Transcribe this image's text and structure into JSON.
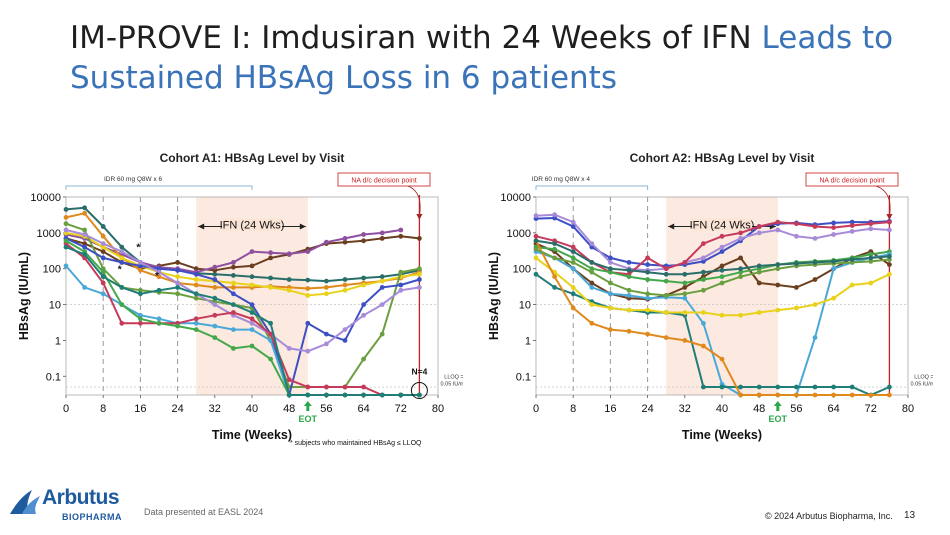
{
  "slide": {
    "title_part1": "IM-PROVE I: Imdusiran with 24 Weeks of IFN ",
    "title_part2": "Leads to",
    "title_part3": "Sustained ",
    "title_part4": "HBsAg Loss in 6 patients",
    "footer_note": "Data presented at EASL 2024",
    "copyright": "© 2024 Arbutus Biopharma, Inc.",
    "page_number": "13",
    "logo_name": "Arbutus",
    "logo_sub": "BIOPHARMA",
    "accent_color": "#3a73b8"
  },
  "chart_data": [
    {
      "type": "line",
      "title": "Cohort A1: HBsAg Level by Visit",
      "xlabel": "Time (Weeks)",
      "ylabel": "HBsAg (IU/mL)",
      "xlim": [
        0,
        80
      ],
      "ylim": [
        0.03,
        10000
      ],
      "yscale": "log",
      "xticks": [
        "0",
        "8",
        "16",
        "24",
        "32",
        "40",
        "48",
        "56",
        "64",
        "72",
        "80"
      ],
      "yticks": [
        "0.1",
        "1",
        "10",
        "100",
        "1000",
        "10000"
      ],
      "annotations": {
        "idr": "IDR 60 mg Q8W x 6",
        "ifn": "IFN (24 Wks)",
        "na": "NA d/c decision point",
        "eot": "EOT",
        "n": "N=4",
        "lloq1": "LLOQ =",
        "lloq2": "0.05 IU/mL",
        "footnote": "* subjects who maintained HBsAg ≤ LLOQ"
      },
      "series": [
        {
          "color": "#2a6e6a",
          "x": [
            0,
            4,
            8,
            12,
            16,
            20,
            24,
            28,
            32,
            36,
            40,
            44,
            48,
            52,
            56,
            60,
            64,
            68,
            72,
            76
          ],
          "y": [
            4500,
            5000,
            1500,
            400,
            150,
            100,
            90,
            75,
            70,
            65,
            60,
            55,
            50,
            48,
            45,
            50,
            55,
            60,
            70,
            90
          ]
        },
        {
          "color": "#6b3f1f",
          "x": [
            0,
            4,
            8,
            12,
            16,
            20,
            24,
            28,
            32,
            36,
            40,
            44,
            48,
            52,
            56,
            60,
            64,
            68,
            72,
            76
          ],
          "y": [
            700,
            500,
            300,
            150,
            100,
            120,
            150,
            100,
            90,
            110,
            120,
            200,
            250,
            350,
            500,
            550,
            600,
            700,
            800,
            700
          ]
        },
        {
          "color": "#8f4fa0",
          "x": [
            0,
            4,
            8,
            12,
            16,
            20,
            24,
            28,
            32,
            36,
            40,
            44,
            48,
            52,
            56,
            60,
            64,
            68,
            72
          ],
          "y": [
            900,
            700,
            400,
            250,
            150,
            110,
            100,
            80,
            110,
            150,
            300,
            280,
            260,
            300,
            550,
            700,
            900,
            1000,
            1200
          ]
        },
        {
          "color": "#e08a1e",
          "x": [
            0,
            4,
            8,
            12,
            16,
            20,
            24,
            28,
            32,
            36,
            40,
            44,
            48,
            52,
            56,
            60,
            64,
            68,
            72,
            76
          ],
          "y": [
            2700,
            3500,
            800,
            200,
            90,
            60,
            40,
            35,
            30,
            30,
            30,
            32,
            30,
            28,
            30,
            35,
            40,
            45,
            55,
            80
          ]
        },
        {
          "color": "#e8d21c",
          "x": [
            0,
            4,
            8,
            12,
            16,
            20,
            24,
            28,
            32,
            36,
            40,
            44,
            48,
            52,
            56,
            60,
            64,
            68,
            72,
            76
          ],
          "y": [
            1000,
            800,
            400,
            200,
            120,
            80,
            60,
            50,
            45,
            40,
            35,
            30,
            25,
            18,
            20,
            25,
            35,
            45,
            60,
            70
          ]
        },
        {
          "color": "#6a9e3f",
          "x": [
            0,
            4,
            8,
            12,
            16,
            20,
            24,
            28,
            32,
            36,
            40,
            44,
            48,
            52,
            56,
            60,
            64,
            68,
            72,
            76
          ],
          "y": [
            1800,
            1200,
            100,
            30,
            25,
            22,
            20,
            15,
            12,
            10,
            8,
            1,
            0.05,
            0.05,
            0.05,
            0.05,
            0.3,
            1.5,
            80,
            100
          ]
        },
        {
          "color": "#3d4fc4",
          "x": [
            0,
            4,
            8,
            12,
            16,
            20,
            24,
            28,
            32,
            36,
            40,
            44,
            48,
            52,
            56,
            60,
            64,
            68,
            72,
            76
          ],
          "y": [
            700,
            400,
            200,
            150,
            120,
            100,
            90,
            70,
            50,
            20,
            10,
            1.5,
            0.03,
            3,
            1.5,
            1,
            10,
            30,
            35,
            50
          ]
        },
        {
          "color": "#a78bd9",
          "x": [
            0,
            4,
            8,
            12,
            16,
            20,
            24,
            28,
            32,
            36,
            40,
            44,
            48,
            52,
            56,
            60,
            64,
            68,
            72,
            76
          ],
          "y": [
            1200,
            900,
            500,
            300,
            150,
            80,
            40,
            20,
            10,
            5,
            3,
            1.5,
            0.6,
            0.5,
            0.8,
            2,
            5,
            10,
            25,
            30
          ]
        },
        {
          "color": "#4aa8d8",
          "x": [
            0,
            4,
            8,
            12,
            16,
            20,
            24,
            28,
            32,
            36,
            40,
            44,
            48,
            52
          ],
          "y": [
            120,
            30,
            20,
            10,
            5,
            4,
            3,
            3,
            2.5,
            2,
            2,
            1,
            0.03,
            0.03
          ]
        },
        {
          "color": "#c63a5a",
          "x": [
            0,
            4,
            8,
            12,
            16,
            20,
            24,
            28,
            32,
            36,
            40,
            44,
            48,
            52,
            56,
            60,
            64,
            68,
            72
          ],
          "y": [
            500,
            200,
            40,
            3,
            3,
            3,
            3,
            4,
            5,
            6,
            4,
            1.5,
            0.08,
            0.05,
            0.05,
            0.05,
            0.05,
            0.03,
            0.03
          ]
        },
        {
          "color": "#44a84a",
          "x": [
            0,
            4,
            8,
            12,
            16,
            20,
            24,
            28,
            32,
            36,
            40,
            44,
            48,
            52,
            56,
            60,
            64,
            68,
            72,
            76
          ],
          "y": [
            600,
            300,
            80,
            10,
            4,
            3,
            2.5,
            2,
            1.2,
            0.6,
            0.7,
            0.3,
            0.03,
            0.03,
            0.03,
            0.03,
            0.03,
            0.03,
            0.03,
            0.03
          ]
        },
        {
          "color": "#1f7e77",
          "x": [
            0,
            4,
            8,
            12,
            16,
            20,
            24,
            28,
            32,
            36,
            40,
            44,
            48,
            52,
            56,
            60,
            64,
            68,
            72,
            76
          ],
          "y": [
            400,
            250,
            60,
            30,
            20,
            25,
            30,
            20,
            15,
            10,
            6,
            3,
            0.03,
            0.03,
            0.03,
            0.03,
            0.03,
            0.03,
            0.03,
            0.03
          ]
        }
      ]
    },
    {
      "type": "line",
      "title": "Cohort A2: HBsAg Level by Visit",
      "xlabel": "Time (Weeks)",
      "ylabel": "HBsAg (IU/mL)",
      "xlim": [
        0,
        80
      ],
      "ylim": [
        0.03,
        10000
      ],
      "yscale": "log",
      "xticks": [
        "0",
        "8",
        "16",
        "24",
        "32",
        "40",
        "48",
        "56",
        "64",
        "72",
        "80"
      ],
      "yticks": [
        "0.1",
        "1",
        "10",
        "100",
        "1000",
        "10000"
      ],
      "annotations": {
        "idr": "IDR 60 mg Q8W x 4",
        "ifn": "IFN (24 Wks)",
        "na": "NA d/c decision point",
        "eot": "EOT",
        "lloq1": "LLOQ =",
        "lloq2": "0.05 IU/mL"
      },
      "series": [
        {
          "color": "#3d4fc4",
          "x": [
            0,
            4,
            8,
            12,
            16,
            20,
            24,
            28,
            32,
            36,
            40,
            44,
            48,
            52,
            56,
            60,
            64,
            68,
            72,
            76
          ],
          "y": [
            2500,
            2600,
            1500,
            400,
            200,
            150,
            130,
            120,
            130,
            160,
            300,
            600,
            1500,
            1800,
            1900,
            1700,
            1900,
            2000,
            2000,
            2100
          ]
        },
        {
          "color": "#a78bd9",
          "x": [
            0,
            4,
            8,
            12,
            16,
            20,
            24,
            28,
            32,
            36,
            40,
            44,
            48,
            52,
            56,
            60,
            64,
            68,
            72,
            76
          ],
          "y": [
            3000,
            3200,
            2000,
            500,
            150,
            100,
            90,
            100,
            150,
            200,
            400,
            700,
            1000,
            1200,
            800,
            700,
            900,
            1100,
            1300,
            1200
          ]
        },
        {
          "color": "#c63a5a",
          "x": [
            0,
            4,
            8,
            12,
            16,
            20,
            24,
            28,
            32,
            36,
            40,
            44,
            48,
            52,
            56,
            60,
            64,
            68,
            72,
            76
          ],
          "y": [
            800,
            600,
            400,
            150,
            80,
            70,
            200,
            100,
            150,
            500,
            800,
            1000,
            1500,
            2000,
            1800,
            1500,
            1400,
            1600,
            1800,
            2000
          ]
        },
        {
          "color": "#6b3f1f",
          "x": [
            0,
            4,
            8,
            12,
            16,
            20,
            24,
            28,
            32,
            36,
            40,
            44,
            48,
            52,
            56,
            60,
            64,
            68,
            72,
            76
          ],
          "y": [
            500,
            300,
            100,
            40,
            20,
            15,
            14,
            18,
            30,
            60,
            120,
            200,
            40,
            35,
            30,
            50,
            100,
            200,
            300,
            130
          ]
        },
        {
          "color": "#44a84a",
          "x": [
            0,
            4,
            8,
            12,
            16,
            20,
            24,
            28,
            32,
            36,
            40,
            44,
            48,
            52,
            56,
            60,
            64,
            68,
            72,
            76
          ],
          "y": [
            400,
            350,
            200,
            100,
            80,
            60,
            50,
            45,
            40,
            50,
            60,
            80,
            100,
            130,
            150,
            160,
            170,
            200,
            250,
            300
          ]
        },
        {
          "color": "#4aa8d8",
          "x": [
            0,
            4,
            8,
            12,
            16,
            20,
            24,
            28,
            32,
            36,
            40,
            44,
            48,
            52,
            56,
            60,
            64,
            68,
            72,
            76
          ],
          "y": [
            300,
            200,
            100,
            30,
            20,
            18,
            15,
            16,
            15,
            3,
            0.06,
            0.03,
            0.03,
            0.03,
            0.03,
            1.2,
            100,
            150,
            200,
            250
          ]
        },
        {
          "color": "#1f7e77",
          "x": [
            0,
            4,
            8,
            12,
            16,
            20,
            24,
            28,
            32,
            36,
            40,
            44,
            48,
            52,
            56,
            60,
            64,
            68,
            72,
            76
          ],
          "y": [
            70,
            30,
            20,
            12,
            8,
            7,
            6,
            6,
            5,
            0.05,
            0.05,
            0.05,
            0.05,
            0.05,
            0.05,
            0.05,
            0.05,
            0.05,
            0.03,
            0.05
          ]
        },
        {
          "color": "#e8d21c",
          "x": [
            0,
            4,
            8,
            12,
            16,
            20,
            24,
            28,
            32,
            36,
            40,
            44,
            48,
            52,
            56,
            60,
            64,
            68,
            72,
            76
          ],
          "y": [
            200,
            80,
            30,
            10,
            8,
            7,
            7,
            6,
            6,
            6,
            5,
            5,
            6,
            7,
            8,
            10,
            15,
            35,
            40,
            70
          ]
        },
        {
          "color": "#e08a1e",
          "x": [
            0,
            4,
            8,
            12,
            16,
            20,
            24,
            28,
            32,
            36,
            40,
            44,
            48,
            52,
            56,
            60,
            64,
            68,
            72,
            76
          ],
          "y": [
            600,
            60,
            8,
            3,
            2,
            1.8,
            1.5,
            1.2,
            1,
            0.7,
            0.3,
            0.03,
            0.03,
            0.03,
            0.03,
            0.03,
            0.03,
            0.03,
            0.03,
            0.03
          ]
        },
        {
          "color": "#6a9e3f",
          "x": [
            0,
            4,
            8,
            12,
            16,
            20,
            24,
            28,
            32,
            36,
            40,
            44,
            48,
            52,
            56,
            60,
            64,
            68,
            72,
            76
          ],
          "y": [
            350,
            200,
            150,
            80,
            40,
            25,
            20,
            18,
            20,
            25,
            40,
            60,
            80,
            100,
            120,
            130,
            140,
            150,
            160,
            180
          ]
        },
        {
          "color": "#2a6e6a",
          "x": [
            0,
            4,
            8,
            12,
            16,
            20,
            24,
            28,
            32,
            36,
            40,
            44,
            48,
            52,
            56,
            60,
            64,
            68,
            72,
            76
          ],
          "y": [
            600,
            500,
            300,
            150,
            100,
            90,
            80,
            70,
            70,
            80,
            90,
            100,
            120,
            130,
            140,
            150,
            160,
            180,
            200,
            220
          ]
        }
      ]
    }
  ]
}
